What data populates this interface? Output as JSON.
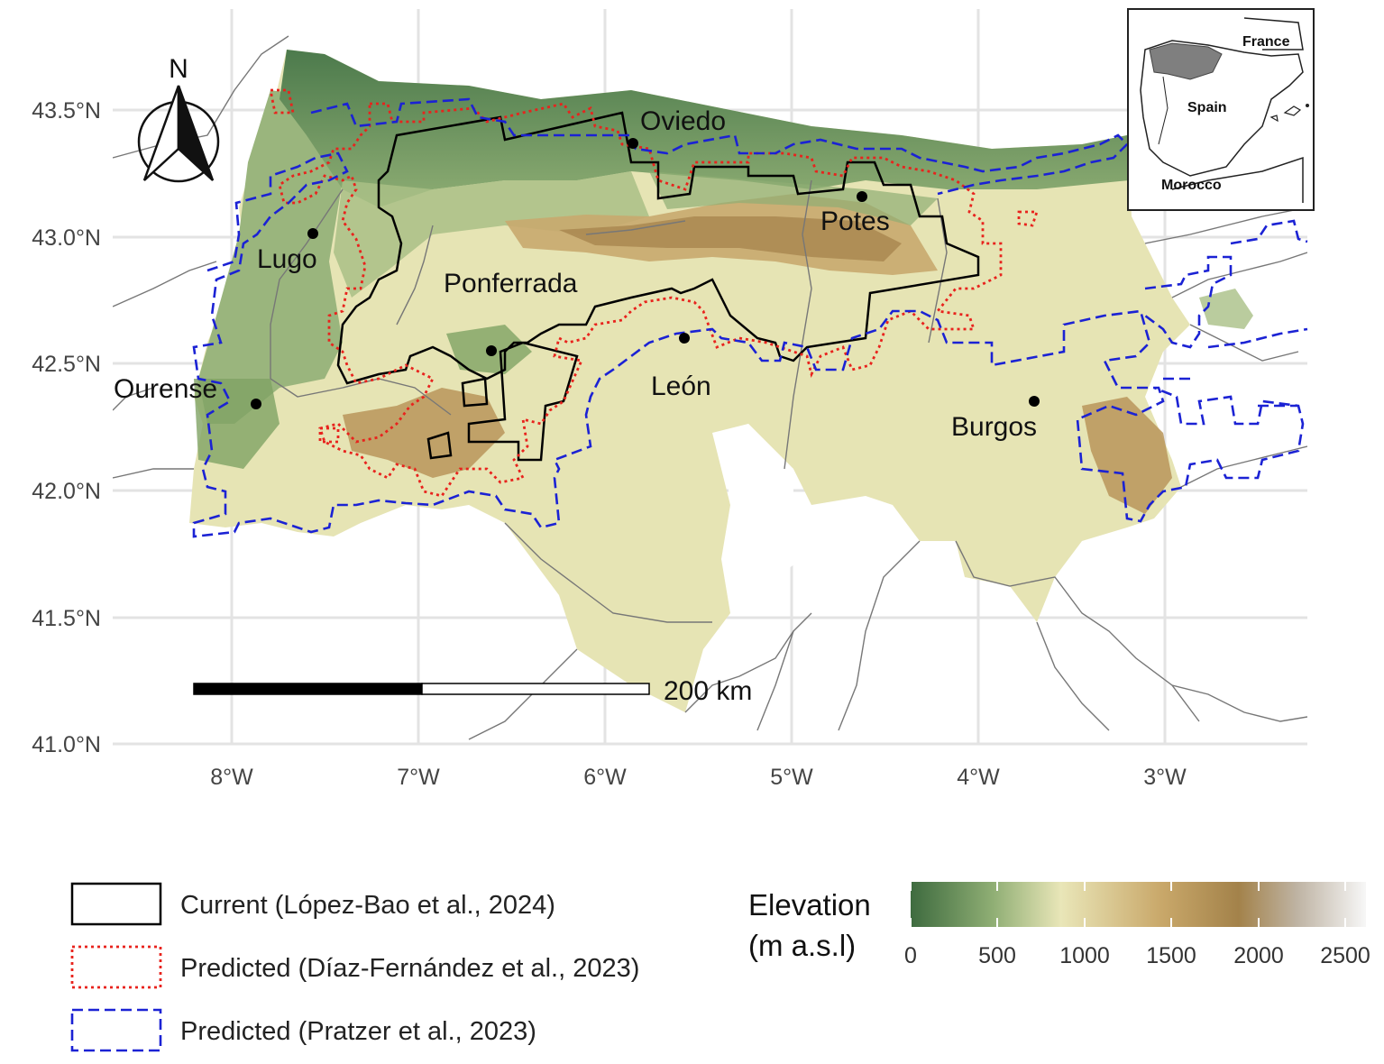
{
  "axes": {
    "lat_labels": [
      "43.5°N",
      "43.0°N",
      "42.5°N",
      "42.0°N",
      "41.5°N",
      "41.0°N"
    ],
    "lon_labels": [
      "8°W",
      "7°W",
      "6°W",
      "5°W",
      "4°W",
      "3°W"
    ]
  },
  "north_arrow": {
    "letter": "N"
  },
  "cities": [
    {
      "name": "Oviedo"
    },
    {
      "name": "Potes"
    },
    {
      "name": "Lugo"
    },
    {
      "name": "Ponferrada"
    },
    {
      "name": "León"
    },
    {
      "name": "Ourense"
    },
    {
      "name": "Burgos"
    }
  ],
  "scale_bar": {
    "label": "200 km"
  },
  "inset": {
    "labels": [
      "France",
      "Spain",
      "Morocco"
    ]
  },
  "legend": {
    "items": [
      {
        "label": "Current (López-Bao et al., 2024)",
        "color": "#000000",
        "style": "solid"
      },
      {
        "label": "Predicted (Díaz-Fernández et al., 2023)",
        "color": "#e8231d",
        "style": "dotted"
      },
      {
        "label": "Predicted (Pratzer et al., 2023)",
        "color": "#1b22d4",
        "style": "dashed"
      }
    ]
  },
  "colorbar": {
    "title_line1": "Elevation",
    "title_line2": "(m a.s.l)",
    "ticks": [
      "0",
      "500",
      "1000",
      "1500",
      "2000",
      "2500"
    ],
    "colors": [
      "#3e6b3f",
      "#8fae74",
      "#e9e6b8",
      "#c9a86a",
      "#a3824a",
      "#bfb4a4",
      "#f7f7f7"
    ]
  },
  "map_colors": {
    "lowland": "#e6e4b4",
    "green": "#7a9e64",
    "dark_green": "#4c7a4c",
    "brown": "#b8955a",
    "grid": "#e3e3e3"
  }
}
